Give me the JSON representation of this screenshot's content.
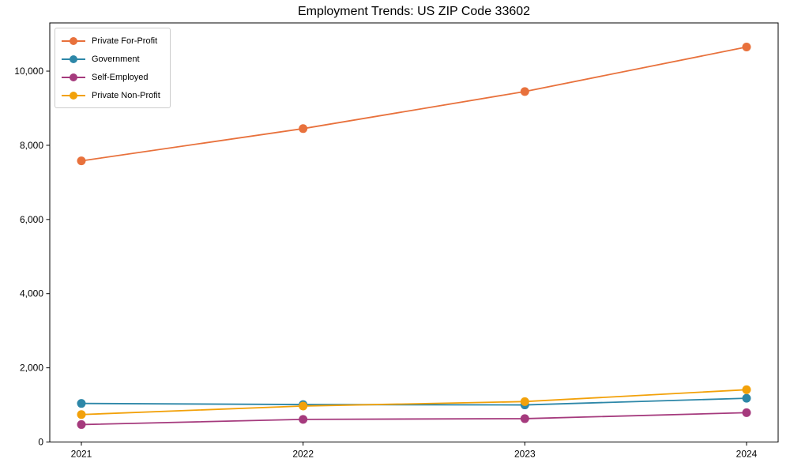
{
  "title": "Employment Trends: US ZIP Code 33602",
  "chart_data": {
    "type": "line",
    "title": "Employment Trends: US ZIP Code 33602",
    "xlabel": "",
    "ylabel": "",
    "x": [
      2021,
      2022,
      2023,
      2024
    ],
    "xtick_labels": [
      "2021",
      "2022",
      "2023",
      "2024"
    ],
    "yticks": [
      0,
      2000,
      4000,
      6000,
      8000,
      10000
    ],
    "ytick_labels": [
      "0",
      "2,000",
      "4,000",
      "6,000",
      "8,000",
      "10,000"
    ],
    "ylim": [
      0,
      11300
    ],
    "grid": false,
    "legend_position": "upper left",
    "series": [
      {
        "name": "Private For-Profit",
        "color": "#e8713c",
        "values": [
          7580,
          8450,
          9450,
          10650
        ]
      },
      {
        "name": "Government",
        "color": "#2d87a8",
        "values": [
          1040,
          1010,
          1000,
          1180
        ]
      },
      {
        "name": "Self-Employed",
        "color": "#a53a7d",
        "values": [
          470,
          610,
          630,
          790
        ]
      },
      {
        "name": "Private Non-Profit",
        "color": "#f2a10a",
        "values": [
          740,
          970,
          1090,
          1410
        ]
      }
    ]
  }
}
